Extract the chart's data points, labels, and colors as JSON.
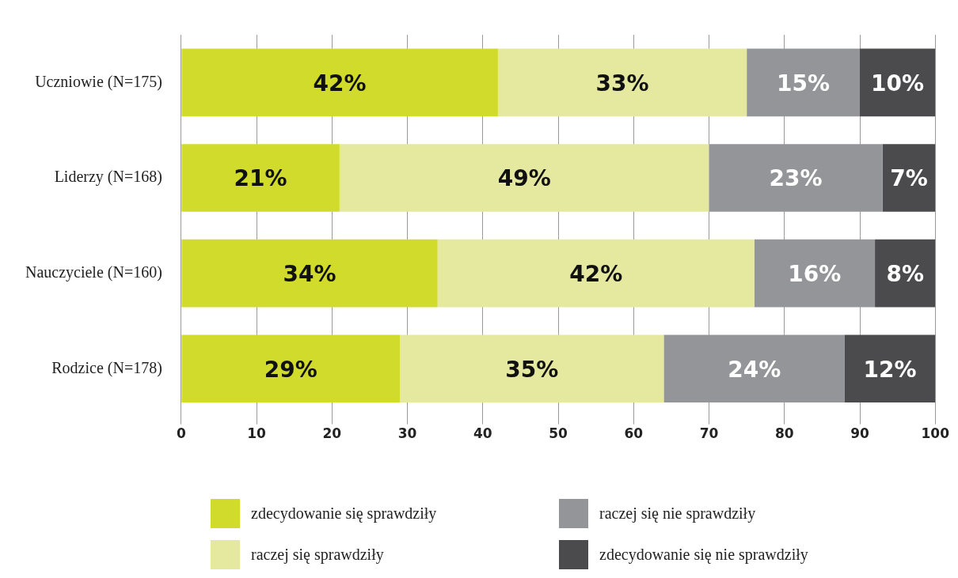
{
  "chart_data": {
    "type": "bar",
    "orientation": "horizontal",
    "stacked": true,
    "categories": [
      "Uczniowie (N=175)",
      "Liderzy (N=168)",
      "Nauczyciele (N=160)",
      "Rodzice (N=178)"
    ],
    "series": [
      {
        "name": "zdecydowanie się sprawdziły",
        "color": "#d1db2b",
        "values": [
          42,
          21,
          34,
          29
        ],
        "value_labels": [
          "42%",
          "21%",
          "34%",
          "29%"
        ]
      },
      {
        "name": "raczej się sprawdziły",
        "color": "#e5e89f",
        "values": [
          33,
          49,
          42,
          35
        ],
        "value_labels": [
          "33%",
          "49%",
          "42%",
          "35%"
        ]
      },
      {
        "name": "raczej się nie sprawdziły",
        "color": "#939598",
        "values": [
          15,
          23,
          16,
          24
        ],
        "value_labels": [
          "15%",
          "23%",
          "16%",
          "24%"
        ]
      },
      {
        "name": "zdecydowanie się nie sprawdziły",
        "color": "#4b4b4d",
        "values": [
          10,
          7,
          8,
          12
        ],
        "value_labels": [
          "10%",
          "7%",
          "8%",
          "12%"
        ]
      }
    ],
    "xlim": [
      0,
      100
    ],
    "xticks": [
      0,
      10,
      20,
      30,
      40,
      50,
      60,
      70,
      80,
      90,
      100
    ],
    "grid": "x",
    "legend": "bottom"
  }
}
